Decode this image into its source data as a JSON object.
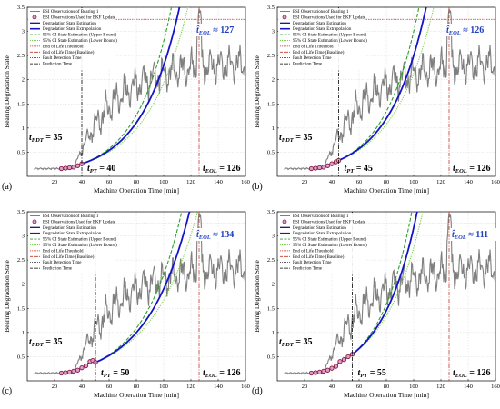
{
  "chart_data": [
    {
      "type": "line",
      "panel_label": "(a)",
      "xlabel": "Machine Operation Time [min]",
      "ylabel": "Bearing Degradation State",
      "xlim": [
        0,
        160
      ],
      "ylim": [
        0,
        3.5
      ],
      "xticks": [
        "20",
        "40",
        "60",
        "80",
        "100",
        "120",
        "140",
        "160"
      ],
      "yticks": [
        "0.5",
        "1",
        "1.5",
        "2",
        "2.5",
        "3",
        "3.5"
      ],
      "grid": true,
      "legend_position": "top-left",
      "legend": [
        "ESI Observations of Bearing 1",
        "ESI Observations Used for EKF Update",
        "Degradation State Estimation",
        "Degradation State Extrapolation",
        "95% CI State Estimation (Upper Bound)",
        "95% CI State Estimation (Lower Bound)",
        "End of Life Threshold",
        "End of Life Time (Baseline)",
        "Fault Detection Time",
        "Prediction Time"
      ],
      "threshold": 3.25,
      "fault_detection_time": 35,
      "prediction_time": 40,
      "eol_baseline": 126,
      "eol_estimate": 127,
      "labels": {
        "fdt": "t_FDT = 35",
        "pt": "t_PT = 40",
        "eol": "t_EOL = 126",
        "eol_est": "t̂_EOL ≈ 127"
      },
      "ekf_obs": {
        "x": [
          25,
          28,
          31,
          34,
          37,
          40
        ],
        "y": [
          0.16,
          0.17,
          0.18,
          0.19,
          0.22,
          0.26
        ]
      },
      "extrapolation_growth": 0.0363,
      "ci_spread": 0.09
    },
    {
      "type": "line",
      "panel_label": "(b)",
      "xlabel": "Machine Operation Time [min]",
      "ylabel": "Bearing Degradation State",
      "xlim": [
        0,
        160
      ],
      "ylim": [
        0,
        3.5
      ],
      "xticks": [
        "20",
        "40",
        "60",
        "80",
        "100",
        "120",
        "140",
        "160"
      ],
      "yticks": [
        "0.5",
        "1",
        "1.5",
        "2",
        "2.5",
        "3",
        "3.5"
      ],
      "grid": true,
      "legend_position": "top-left",
      "legend": [
        "ESI Observations of Bearing 1",
        "ESI Observations Used for EKF Update",
        "Degradation State Estimation",
        "Degradation State Extrapolation",
        "95% CI State Estimation (Upper Bound)",
        "95% CI State Estimation (Lower Bound)",
        "End of Life Threshold",
        "End of Life Time (Baseline)",
        "Fault Detection Time",
        "Prediction Time"
      ],
      "threshold": 3.25,
      "fault_detection_time": 35,
      "prediction_time": 45,
      "eol_baseline": 126,
      "eol_estimate": 126,
      "labels": {
        "fdt": "t_FDT = 35",
        "pt": "t_PT = 45",
        "eol": "t_EOL = 126",
        "eol_est": "t̂_EOL ≈ 126"
      },
      "ekf_obs": {
        "x": [
          25,
          28,
          31,
          34,
          37,
          40,
          43,
          45
        ],
        "y": [
          0.16,
          0.17,
          0.18,
          0.19,
          0.22,
          0.26,
          0.3,
          0.33
        ]
      },
      "extrapolation_growth": 0.0368,
      "ci_spread": 0.08
    },
    {
      "type": "line",
      "panel_label": "(c)",
      "xlabel": "Machine Operation Time [min]",
      "ylabel": "Bearing Degradation State",
      "xlim": [
        0,
        160
      ],
      "ylim": [
        0,
        3.5
      ],
      "xticks": [
        "20",
        "40",
        "60",
        "80",
        "100",
        "120",
        "140",
        "160"
      ],
      "yticks": [
        "0.5",
        "1",
        "1.5",
        "2",
        "2.5",
        "3",
        "3.5"
      ],
      "grid": true,
      "legend_position": "top-left",
      "legend": [
        "ESI Observations of Bearing 1",
        "ESI Observations Used for EKF Update",
        "Degradation State Estimation",
        "Degradation State Extrapolation",
        "95% CI State Estimation (Upper Bound)",
        "95% CI State Estimation (Lower Bound)",
        "End of Life Threshold",
        "End of Life Time (Baseline)",
        "Fault Detection Time",
        "Prediction Time"
      ],
      "threshold": 3.25,
      "fault_detection_time": 35,
      "prediction_time": 50,
      "eol_baseline": 126,
      "eol_estimate": 134,
      "labels": {
        "fdt": "t_FDT = 35",
        "pt": "t_PT = 50",
        "eol": "t_EOL = 126",
        "eol_est": "t̂_EOL ≈ 134"
      },
      "ekf_obs": {
        "x": [
          25,
          28,
          31,
          34,
          37,
          40,
          43,
          46,
          48,
          50
        ],
        "y": [
          0.16,
          0.17,
          0.18,
          0.2,
          0.22,
          0.27,
          0.31,
          0.4,
          0.42,
          0.38
        ]
      },
      "extrapolation_growth": 0.0322,
      "ci_spread": 0.07
    },
    {
      "type": "line",
      "panel_label": "(d)",
      "xlabel": "Machine Operation Time [min]",
      "ylabel": "Bearing Degradation State",
      "xlim": [
        0,
        160
      ],
      "ylim": [
        0,
        3.5
      ],
      "xticks": [
        "20",
        "40",
        "60",
        "80",
        "100",
        "120",
        "140",
        "160"
      ],
      "yticks": [
        "0.5",
        "1",
        "1.5",
        "2",
        "2.5",
        "3",
        "3.5"
      ],
      "grid": true,
      "legend_position": "top-left",
      "legend": [
        "ESI Observations of Bearing 1",
        "ESI Observations Used for EKF Update",
        "Degradation State Estimation",
        "Degradation State Extrapolation",
        "95% CI State Estimation (Upper Bound)",
        "95% CI State Estimation (Lower Bound)",
        "End of Life Threshold",
        "End of Life Time (Baseline)",
        "Fault Detection Time",
        "Prediction Time"
      ],
      "threshold": 3.25,
      "fault_detection_time": 35,
      "prediction_time": 55,
      "eol_baseline": 126,
      "eol_estimate": 111,
      "labels": {
        "fdt": "t_FDT = 35",
        "pt": "t_PT = 55",
        "eol": "t_EOL = 126",
        "eol_est": "t̂_EOL ≈ 111"
      },
      "ekf_obs": {
        "x": [
          25,
          28,
          31,
          34,
          37,
          40,
          43,
          46,
          49,
          52,
          55
        ],
        "y": [
          0.16,
          0.17,
          0.18,
          0.2,
          0.22,
          0.26,
          0.3,
          0.4,
          0.44,
          0.5,
          0.55
        ]
      },
      "extrapolation_growth": 0.0389,
      "ci_spread": 0.1
    }
  ],
  "colors": {
    "observations": "#7f7f7f",
    "ekf_marker_edge": "#8b1a3a",
    "ekf_marker_fill": "#d8a0d0",
    "estimation": "#000080",
    "extrapolation": "#1515c8",
    "ci_upper": "#2ca02c",
    "ci_lower": "#7cd34a",
    "threshold": "#d62728",
    "eol_line": "#c0392b",
    "grid": "#d9d9d9"
  }
}
